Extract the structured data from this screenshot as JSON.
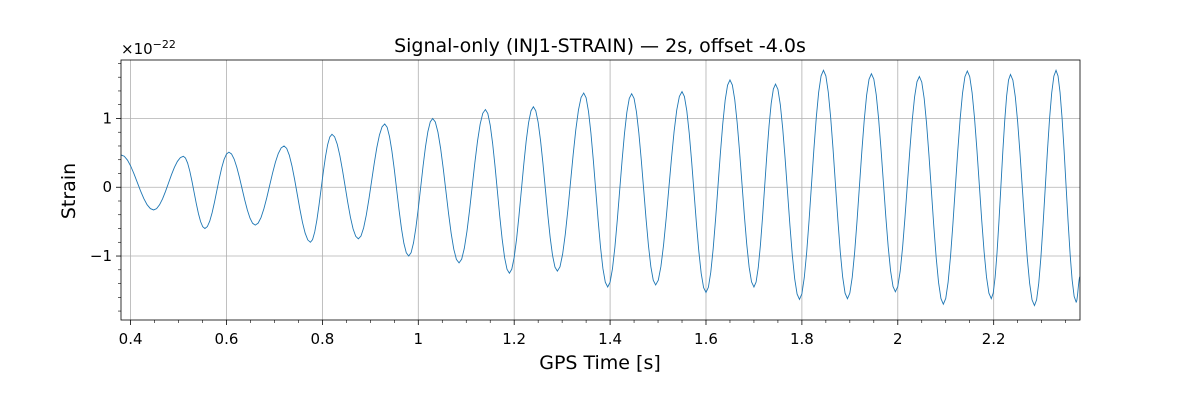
{
  "chart_data": {
    "type": "line",
    "title": "Signal-only (INJ1-STRAIN) — 2s, offset -4.0s",
    "xlabel": "GPS Time [s]",
    "ylabel": "Strain",
    "y_multiplier": "×10",
    "y_exponent": "−22",
    "xlim": [
      0.38,
      2.38
    ],
    "ylim": [
      -1.93,
      1.85
    ],
    "x_ticks": [
      0.4,
      0.6,
      0.8,
      1.0,
      1.2,
      1.4,
      1.6,
      1.8,
      2.0,
      2.2
    ],
    "x_tick_labels": [
      "0.4",
      "0.6",
      "0.8",
      "1",
      "1.2",
      "1.4",
      "1.6",
      "1.8",
      "2",
      "2.2"
    ],
    "y_ticks": [
      -1,
      0,
      1
    ],
    "y_tick_labels": [
      "−1",
      "0",
      "1"
    ],
    "grid": true,
    "series": [
      {
        "color": "#1f77b4",
        "x": [
          0.38,
          0.448,
          0.51,
          0.555,
          0.605,
          0.66,
          0.72,
          0.775,
          0.82,
          0.875,
          0.93,
          0.98,
          1.03,
          1.085,
          1.14,
          1.19,
          1.24,
          1.29,
          1.345,
          1.395,
          1.445,
          1.495,
          1.55,
          1.6,
          1.65,
          1.7,
          1.745,
          1.795,
          1.845,
          1.895,
          1.945,
          1.995,
          2.045,
          2.095,
          2.145,
          2.195,
          2.235,
          2.285,
          2.33,
          2.372,
          2.38
        ],
        "values": [
          0.47,
          -0.33,
          0.45,
          -0.6,
          0.51,
          -0.55,
          0.6,
          -0.8,
          0.77,
          -0.75,
          0.92,
          -1.0,
          1.0,
          -1.1,
          1.13,
          -1.25,
          1.17,
          -1.22,
          1.37,
          -1.45,
          1.36,
          -1.42,
          1.39,
          -1.53,
          1.56,
          -1.45,
          1.5,
          -1.63,
          1.7,
          -1.62,
          1.65,
          -1.52,
          1.61,
          -1.7,
          1.69,
          -1.62,
          1.64,
          -1.72,
          1.7,
          -1.67,
          -1.3
        ]
      }
    ]
  }
}
